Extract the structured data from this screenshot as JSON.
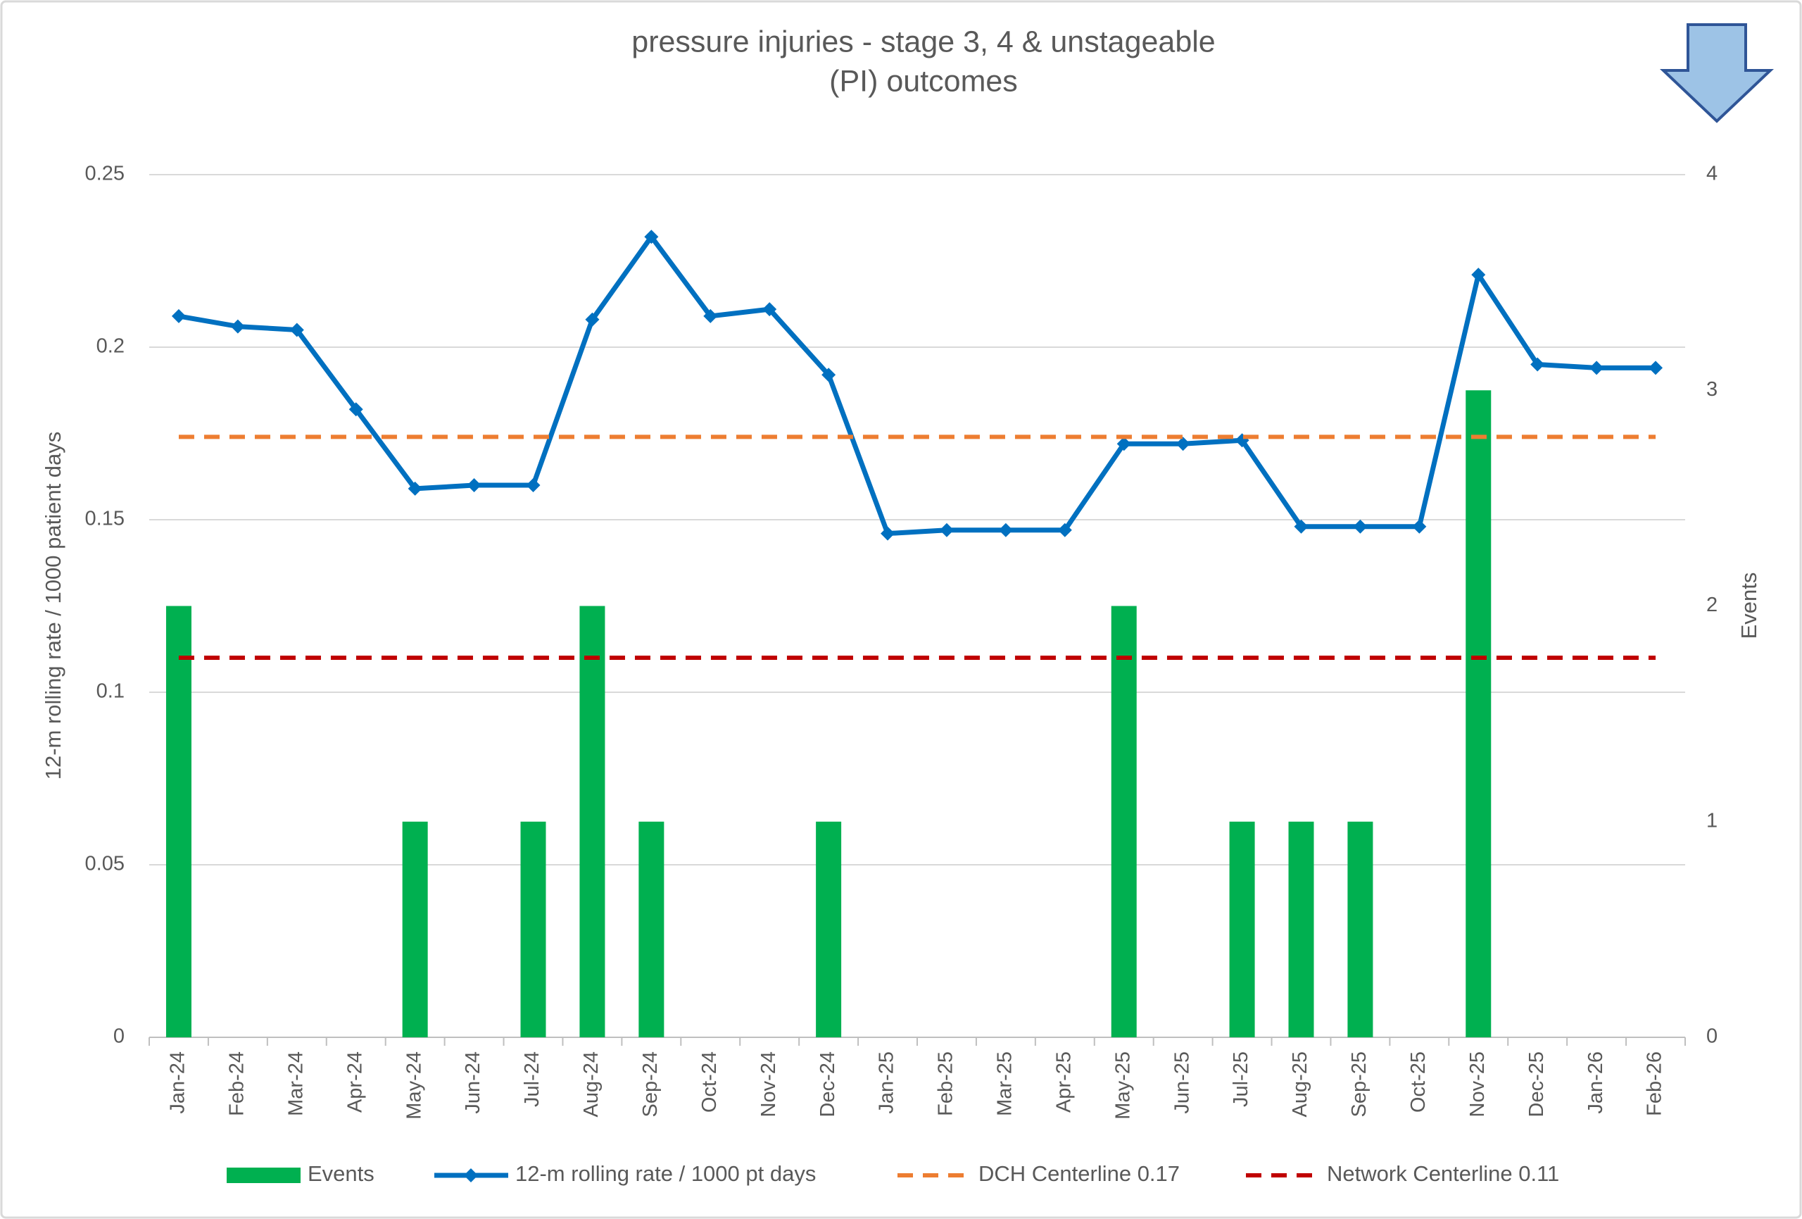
{
  "chart_data": {
    "type": "combo",
    "title": [
      "pressure injuries - stage 3, 4 & unstageable",
      "(PI) outcomes"
    ],
    "ylabel": "12-m rolling rate / 1000 patient days",
    "y2label": "Events",
    "categories": [
      "Jan-24",
      "Feb-24",
      "Mar-24",
      "Apr-24",
      "May-24",
      "Jun-24",
      "Jul-24",
      "Aug-24",
      "Sep-24",
      "Oct-24",
      "Nov-24",
      "Dec-24",
      "Jan-25",
      "Feb-25",
      "Mar-25",
      "Apr-25",
      "May-25",
      "Jun-25",
      "Jul-25",
      "Aug-25",
      "Sep-25",
      "Oct-25",
      "Nov-25",
      "Dec-25",
      "Jan-26",
      "Feb-26"
    ],
    "series": [
      {
        "name": "Events",
        "type": "bar",
        "axis": "y2",
        "color": "#00b050",
        "values": [
          2,
          0,
          0,
          0,
          1,
          0,
          1,
          2,
          1,
          0,
          0,
          1,
          0,
          0,
          0,
          0,
          2,
          0,
          1,
          1,
          1,
          0,
          3,
          0,
          0,
          0
        ]
      },
      {
        "name": "12-m rolling rate / 1000 pt days",
        "type": "line",
        "color": "#0070c0",
        "values": [
          0.209,
          0.206,
          0.205,
          0.182,
          0.159,
          0.16,
          0.16,
          0.208,
          0.232,
          0.209,
          0.211,
          0.192,
          0.146,
          0.147,
          0.147,
          0.147,
          0.172,
          0.172,
          0.173,
          0.148,
          0.148,
          0.148,
          0.221,
          0.195,
          0.194,
          0.194
        ]
      },
      {
        "name": "DCH Centerline 0.17",
        "type": "hline",
        "color": "#ed7d31",
        "value": 0.174
      },
      {
        "name": "Network Centerline 0.11",
        "type": "hline",
        "color": "#c00000",
        "value": 0.11
      }
    ],
    "ylim": [
      0,
      0.25
    ],
    "yticks": [
      0,
      0.05,
      0.1,
      0.15,
      0.2,
      0.25
    ],
    "y2lim": [
      0,
      4
    ],
    "y2ticks": [
      0,
      1,
      2,
      3,
      4
    ],
    "grid": true,
    "legend": "bottom"
  }
}
